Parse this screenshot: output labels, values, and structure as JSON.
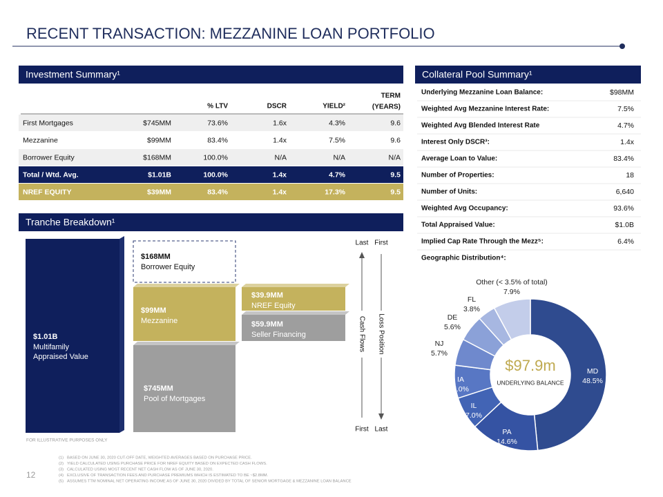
{
  "header": {
    "title": "RECENT TRANSACTION: MEZZANINE LOAN PORTFOLIO",
    "page_number": "12"
  },
  "investment_summary": {
    "title": "Investment Summary¹",
    "headers": [
      {
        "label": "% LTV"
      },
      {
        "label": "DSCR"
      },
      {
        "label": "YIELD²"
      },
      {
        "label": "TERM",
        "label2": "(YEARS)"
      }
    ],
    "rows": [
      [
        "First Mortgages",
        "$745MM",
        "73.6%",
        "1.6x",
        "4.3%",
        "9.6"
      ],
      [
        "Mezzanine",
        "$99MM",
        "83.4%",
        "1.4x",
        "7.5%",
        "9.6"
      ],
      [
        "Borrower Equity",
        "$168MM",
        "100.0%",
        "N/A",
        "N/A",
        "N/A"
      ],
      [
        "Total / Wtd. Avg.",
        "$1.01B",
        "100.0%",
        "1.4x",
        "4.7%",
        "9.5"
      ],
      [
        "NREF EQUITY",
        "$39MM",
        "83.4%",
        "1.4x",
        "17.3%",
        "9.5"
      ]
    ]
  },
  "collateral_summary": {
    "title": "Collateral Pool Summary¹",
    "rows": [
      [
        "Underlying Mezzanine Loan Balance:",
        "$98MM"
      ],
      [
        "Weighted Avg Mezzanine Interest Rate:",
        "7.5%"
      ],
      [
        "Weighted Avg Blended Interest Rate",
        "4.7%"
      ],
      [
        "Interest Only DSCR³:",
        "1.4x"
      ],
      [
        "Average Loan to Value:",
        "83.4%"
      ],
      [
        "Number of Properties:",
        "18"
      ],
      [
        "Number of Units:",
        "6,640"
      ],
      [
        "Weighted Avg Occupancy:",
        "93.6%"
      ],
      [
        "Total Appraised Value:",
        "$1.0B"
      ],
      [
        "Implied Cap Rate Through the Mezz⁵:",
        "6.4%"
      ],
      [
        "Geographic Distribution⁴:"
      ]
    ]
  },
  "tranche": {
    "title": "Tranche Breakdown¹",
    "boxes": [
      {
        "amount": "$1.01B",
        "lines": [
          "Multifamily",
          "Appraised Value"
        ]
      },
      {
        "amount": "$168MM",
        "lines": [
          "Borrower Equity"
        ]
      },
      {
        "amount": "$99MM",
        "lines": [
          "Mezzanine"
        ]
      },
      {
        "amount": "$745MM",
        "lines": [
          "Pool of Mortgages"
        ]
      },
      {
        "amount": "$39.9MM",
        "lines": [
          "NREF Equity"
        ]
      },
      {
        "amount": "$59.9MM",
        "lines": [
          "Seller Financing"
        ]
      }
    ],
    "arrows": {
      "top": [
        "Last",
        "First"
      ],
      "bottom": [
        "First",
        "Last"
      ],
      "left": "Cash Flows",
      "right": "Loss Position"
    },
    "note": "FOR ILLUSTRATIVE PURPOSES ONLY"
  },
  "chart_data": {
    "type": "donut",
    "center_value": "$97.9m",
    "center_label": "UNDERLYING BALANCE",
    "categories": [
      "MD",
      "PA",
      "IL",
      "IA",
      "NJ",
      "DE",
      "FL",
      "Other (< 3.5% of total)"
    ],
    "values": [
      48.5,
      14.6,
      7.0,
      7.0,
      5.7,
      5.6,
      3.8,
      7.9
    ],
    "value_labels": [
      "48.5%",
      "14.6%",
      "7.0%",
      "7.0%",
      "5.7%",
      "5.6%",
      "3.8%",
      "7.9%"
    ],
    "colors": [
      "#2f4b8f",
      "#3553a3",
      "#4264b5",
      "#5877c4",
      "#6f89cd",
      "#8ba1d8",
      "#a7b7e1",
      "#c3cdea"
    ]
  },
  "footnotes": [
    {
      "num": "(1)",
      "text": "BASED ON JUNE 30, 2020 CUT-OFF DATE, WEIGHTED AVERAGES BASED ON PURCHASE PRICE."
    },
    {
      "num": "(2)",
      "text": "YIELD CALCULATED USING PURCHASE PRICE FOR NREF EQUITY BASED ON EXPECTED CASH FLOWS."
    },
    {
      "num": "(3)",
      "text": "CALCULATED USING MOST RECENT NET CASH FLOW AS OF JUNE 30, 2020."
    },
    {
      "num": "(4)",
      "text": "EXCLUSIVE OF TRANSACTION FEES AND PURCHASE PREMIUMS WHICH IS ESTIMATED TO BE ~$2.8MM."
    },
    {
      "num": "(5)",
      "text": "ASSUMES TTM NOMINAL NET OPERATING INCOME AS OF JUNE 30, 2020 DIVIDED BY TOTAL OF SENIOR MORTGAGE & MEZZANINE LOAN BALANCE"
    }
  ]
}
